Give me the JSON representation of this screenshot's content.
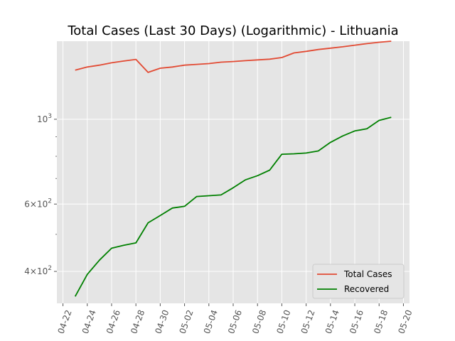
{
  "chart_data": {
    "type": "line",
    "title": "Total Cases (Last 30 Days) (Logarithmic) - Lithuania",
    "xlabel": "",
    "ylabel": "",
    "yscale": "log",
    "x": [
      "04-23",
      "04-24",
      "04-25",
      "04-26",
      "04-27",
      "04-28",
      "04-29",
      "04-30",
      "05-01",
      "05-02",
      "05-03",
      "05-04",
      "05-05",
      "05-06",
      "05-07",
      "05-08",
      "05-09",
      "05-10",
      "05-11",
      "05-12",
      "05-13",
      "05-14",
      "05-15",
      "05-16",
      "05-17",
      "05-18",
      "05-19"
    ],
    "x_tick_labels": [
      "04-22",
      "04-24",
      "04-26",
      "04-28",
      "04-30",
      "05-02",
      "05-04",
      "05-06",
      "05-08",
      "05-10",
      "05-12",
      "05-14",
      "05-16",
      "05-18",
      "05-20"
    ],
    "y_ticks": [
      {
        "value": 400,
        "base": "4×10",
        "exp": "2"
      },
      {
        "value": 600,
        "base": "6×10",
        "exp": "2"
      },
      {
        "value": 1000,
        "base": "10",
        "exp": "3"
      }
    ],
    "y_minor_ticks": [
      500,
      700,
      800,
      900
    ],
    "ylim": [
      330,
      1600
    ],
    "series": [
      {
        "name": "Total Cases",
        "color": "#e24a33",
        "values": [
          1344,
          1370,
          1385,
          1405,
          1420,
          1434,
          1326,
          1360,
          1370,
          1385,
          1392,
          1398,
          1410,
          1416,
          1423,
          1430,
          1436,
          1450,
          1491,
          1505,
          1522,
          1534,
          1547,
          1562,
          1577,
          1590,
          1600
        ]
      },
      {
        "name": "Recovered",
        "color": "#008000",
        "values": [
          344,
          393,
          428,
          460,
          468,
          475,
          536,
          560,
          586,
          592,
          628,
          631,
          634,
          662,
          694,
          712,
          736,
          810,
          812,
          816,
          826,
          870,
          904,
          932,
          944,
          993,
          1012
        ]
      }
    ],
    "legend": {
      "position": "bottom-right"
    },
    "grid": true
  }
}
